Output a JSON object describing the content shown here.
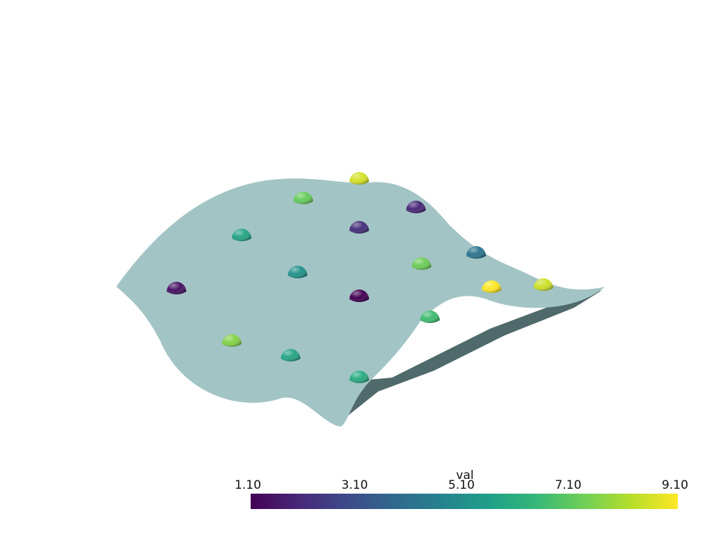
{
  "chart_data": {
    "type": "scatter3d",
    "colorbar_title": "val",
    "colormap": "viridis",
    "clim": [
      1.1,
      9.1
    ],
    "cticks": [
      {
        "value": 1.1,
        "label": "1.10"
      },
      {
        "value": 3.1,
        "label": "3.10"
      },
      {
        "value": 5.1,
        "label": "5.10"
      },
      {
        "value": 7.1,
        "label": "7.10"
      },
      {
        "value": 9.1,
        "label": "9.10"
      }
    ],
    "surface_color": "#a3c4c5",
    "values": [
      8.6,
      7.2,
      2.0,
      5.8,
      2.2,
      4.2,
      5.2,
      7.3,
      1.5,
      1.1,
      9.1,
      8.5,
      6.6,
      7.6,
      5.8,
      6.0
    ]
  }
}
